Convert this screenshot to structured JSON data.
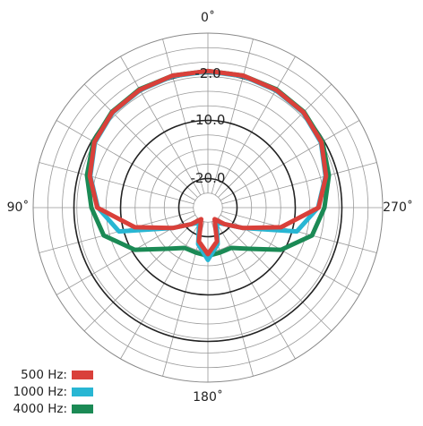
{
  "chart_data": {
    "type": "polar",
    "theta": [
      0,
      15,
      30,
      45,
      60,
      75,
      90,
      105,
      120,
      135,
      150,
      165,
      180,
      195,
      210,
      225,
      240,
      255,
      270,
      285,
      300,
      315,
      330,
      345
    ],
    "series": [
      {
        "name": "4000 Hz:",
        "color": "#1b8a55",
        "values": [
          -1.5,
          -1.5,
          -1.5,
          -1.7,
          -2.3,
          -3.5,
          -5,
          -6.5,
          -10.5,
          -15,
          -17,
          -17,
          -16.7,
          -17,
          -17,
          -15,
          -10.5,
          -6.5,
          -5,
          -3.5,
          -2.3,
          -1.7,
          -1.5,
          -1.5
        ]
      },
      {
        "name": "1000 Hz:",
        "color": "#28b6d3",
        "values": [
          -1.6,
          -1.6,
          -1.7,
          -1.9,
          -2.6,
          -4.1,
          -6.1,
          -9.2,
          -18,
          -21,
          -22,
          -18.5,
          -16,
          -18.5,
          -22,
          -21,
          -18,
          -9.2,
          -6.1,
          -4.1,
          -2.6,
          -1.9,
          -1.7,
          -1.6
        ]
      },
      {
        "name": "500 Hz:",
        "color": "#d9403a",
        "values": [
          -1.5,
          -1.5,
          -1.6,
          -1.8,
          -2.5,
          -4,
          -6,
          -12,
          -18,
          -21,
          -22.7,
          -19,
          -17,
          -19,
          -22.7,
          -21,
          -18,
          -12,
          -6,
          -4,
          -2.5,
          -1.8,
          -1.6,
          -1.5
        ]
      }
    ],
    "rlim": [
      -25,
      5
    ],
    "rticks": [
      {
        "value": -2,
        "label": "-2.0"
      },
      {
        "value": -10,
        "label": "-10.0"
      },
      {
        "value": -20,
        "label": "-20.0"
      }
    ],
    "thetaticks": [
      {
        "value": 0,
        "label": "0˚"
      },
      {
        "value": 90,
        "label": "90˚"
      },
      {
        "value": 180,
        "label": "180˚"
      },
      {
        "value": 270,
        "label": "270˚"
      }
    ]
  }
}
